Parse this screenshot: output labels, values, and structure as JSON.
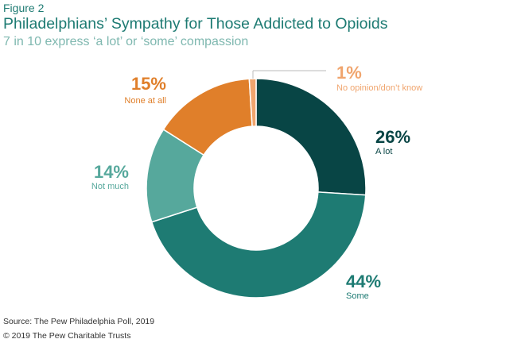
{
  "figure_label": "Figure 2",
  "title": "Philadelphians’ Sympathy for Those Addicted to Opioids",
  "subtitle": "7 in 10 express ‘a lot’ or ‘some’ compassion",
  "source": "Source: The Pew Philadelphia Poll, 2019",
  "copyright": "© 2019 The Pew Charitable Trusts",
  "chart_data": {
    "type": "pie",
    "donut": true,
    "slices": [
      {
        "label": "A lot",
        "value": 26,
        "display": "26%",
        "color": "#084545"
      },
      {
        "label": "Some",
        "value": 44,
        "display": "44%",
        "color": "#1e7b73"
      },
      {
        "label": "Not much",
        "value": 14,
        "display": "14%",
        "color": "#56a89c"
      },
      {
        "label": "None at all",
        "value": 15,
        "display": "15%",
        "color": "#e07f2a"
      },
      {
        "label": "No opinion/don’t know",
        "value": 1,
        "display": "1%",
        "color": "#f0a56e"
      }
    ],
    "legend": "none"
  }
}
